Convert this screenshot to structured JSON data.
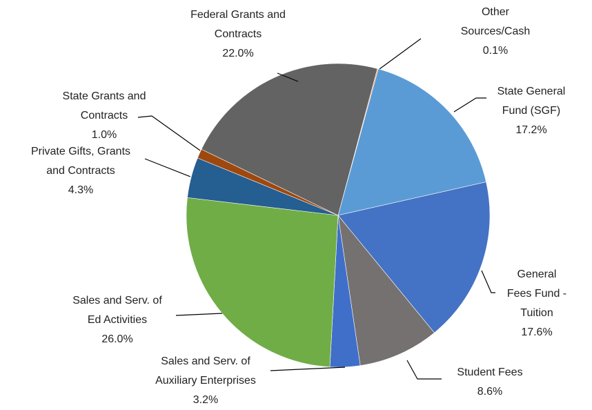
{
  "chart_data": {
    "type": "pie",
    "categories": [
      "Other Sources/Cash",
      "State General Fund (SGF)",
      "General Fees Fund - Tuition",
      "Student Fees",
      "Sales and Serv. of Auxiliary Enterprises",
      "Sales and Serv. of Ed Activities",
      "Private Gifts, Grants and Contracts",
      "State Grants and Contracts",
      "Federal Grants and Contracts"
    ],
    "values": [
      0.1,
      17.2,
      17.6,
      8.6,
      3.2,
      26.0,
      4.3,
      1.0,
      22.0
    ],
    "value_labels": [
      "0.1%",
      "17.2%",
      "17.6%",
      "8.6%",
      "3.2%",
      "26.0%",
      "4.3%",
      "1.0%",
      "22.0%"
    ],
    "colors": [
      "#ed7d31",
      "#5b9bd5",
      "#4472c4",
      "#767171",
      "#3f6fc8",
      "#70ad47",
      "#255e91",
      "#9e480e",
      "#636363"
    ]
  }
}
